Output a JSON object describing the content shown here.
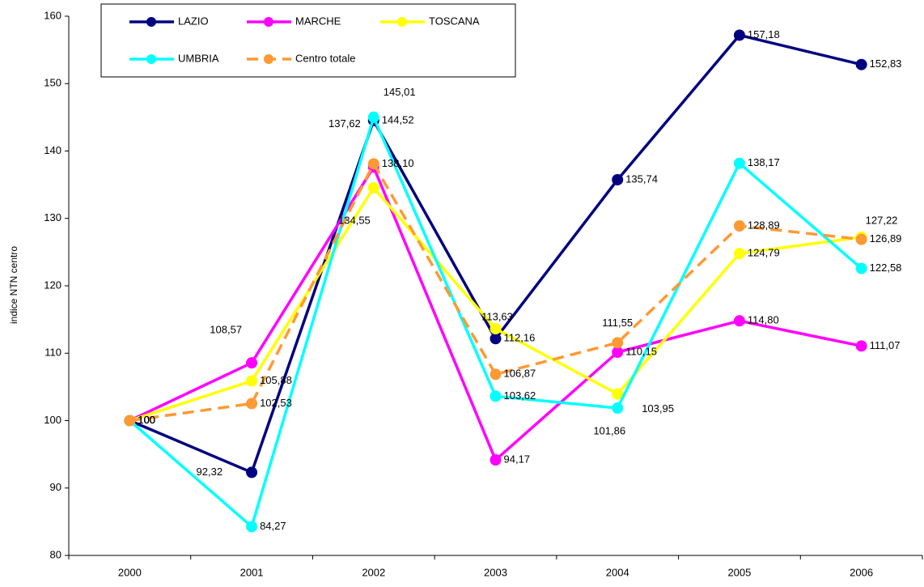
{
  "chart_data": {
    "type": "line",
    "y_label": "indice NTN centro",
    "categories": [
      "2000",
      "2001",
      "2002",
      "2003",
      "2004",
      "2005",
      "2006"
    ],
    "ylim": [
      80,
      160
    ],
    "yticks": [
      80,
      90,
      100,
      110,
      120,
      130,
      140,
      150,
      160
    ],
    "grid": false,
    "legend": "top",
    "series": [
      {
        "name": "LAZIO",
        "color": "#000080",
        "dashed": false,
        "values": [
          100,
          92.32,
          144.52,
          112.16,
          135.74,
          157.18,
          152.83
        ],
        "value_labels": [
          "100",
          "92,32",
          "144,52",
          "112,16",
          "135,74",
          "157,18",
          "152,83"
        ]
      },
      {
        "name": "MARCHE",
        "color": "#ff00ff",
        "dashed": false,
        "values": [
          100,
          108.57,
          137.62,
          94.17,
          110.15,
          114.8,
          111.07
        ],
        "value_labels": [
          "100",
          "108,57",
          "137,62",
          "94,17",
          "110,15",
          "114,80",
          "111,07"
        ]
      },
      {
        "name": "TOSCANA",
        "color": "#ffff00",
        "dashed": false,
        "values": [
          100,
          105.88,
          134.55,
          113.63,
          103.95,
          124.79,
          127.22
        ],
        "value_labels": [
          "100",
          "105,88",
          "134,55",
          "113,63",
          "103,95",
          "124,79",
          "127,22"
        ]
      },
      {
        "name": "UMBRIA",
        "color": "#00ffff",
        "dashed": false,
        "values": [
          100,
          84.27,
          145.01,
          103.62,
          101.86,
          138.17,
          122.58
        ],
        "value_labels": [
          "100",
          "84,27",
          "145,01",
          "103,62",
          "101,86",
          "138,17",
          "122,58"
        ]
      },
      {
        "name": "Centro totale",
        "color": "#ff9933",
        "dashed": true,
        "values": [
          100,
          102.53,
          138.1,
          106.87,
          111.55,
          128.89,
          126.89
        ],
        "value_labels": [
          "100",
          "102,53",
          "138,10",
          "106,87",
          "111,55",
          "128,89",
          "126,89"
        ]
      }
    ]
  }
}
